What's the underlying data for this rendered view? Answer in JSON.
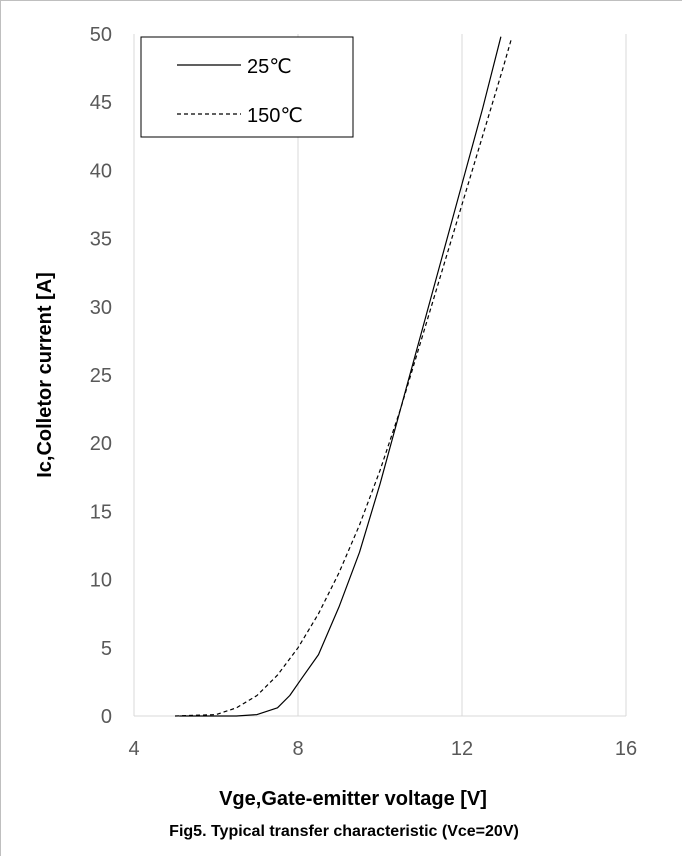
{
  "chart_data": {
    "type": "line",
    "xlabel": "Vge,Gate-emitter voltage [V]",
    "ylabel": "Ic,Colletor current [A]",
    "caption": "Fig5. Typical transfer characteristic (Vce=20V)",
    "xlim": [
      4,
      16
    ],
    "ylim": [
      0,
      50
    ],
    "x_ticks": [
      "4",
      "8",
      "12",
      "16"
    ],
    "y_ticks": [
      "0",
      "5",
      "10",
      "15",
      "20",
      "25",
      "30",
      "35",
      "40",
      "45",
      "50"
    ],
    "grid": "vertical",
    "legend_position": "top-left",
    "series": [
      {
        "name": "25℃",
        "line_style": "solid",
        "color": "#000000",
        "x": [
          5.1,
          6.5,
          7.0,
          7.5,
          7.8,
          8.1,
          8.5,
          9.0,
          9.5,
          10.0,
          10.5,
          11.0,
          11.5,
          12.0,
          12.5,
          12.95
        ],
        "y": [
          0.0,
          0.0,
          0.1,
          0.6,
          1.5,
          2.8,
          4.5,
          8.0,
          12.0,
          17.0,
          22.5,
          28.0,
          33.5,
          39.0,
          44.5,
          49.8
        ]
      },
      {
        "name": "150℃",
        "line_style": "dashed",
        "color": "#000000",
        "x": [
          5.0,
          6.0,
          6.5,
          7.0,
          7.5,
          8.0,
          8.5,
          9.0,
          9.5,
          10.0,
          10.5,
          11.0,
          11.5,
          12.0,
          12.5,
          13.0,
          13.2
        ],
        "y": [
          0.0,
          0.1,
          0.6,
          1.5,
          3.0,
          5.0,
          7.5,
          10.5,
          14.0,
          18.0,
          22.5,
          27.5,
          32.5,
          37.5,
          42.5,
          47.5,
          49.6
        ]
      }
    ]
  }
}
